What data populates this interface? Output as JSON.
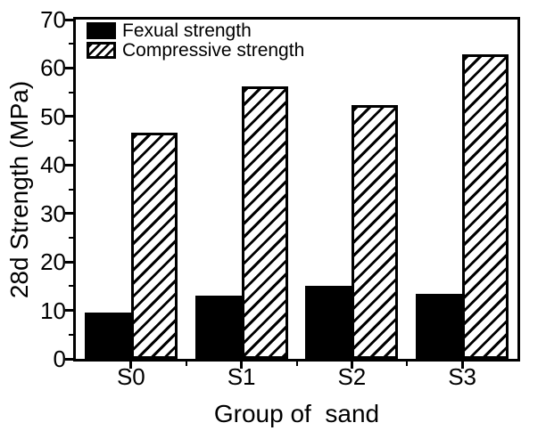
{
  "chart_data": {
    "type": "bar",
    "title": "",
    "categories": [
      "S0",
      "S1",
      "S2",
      "S3"
    ],
    "series": [
      {
        "name": "Fexual strength",
        "style": "solid",
        "values": [
          9.5,
          13.0,
          15.0,
          13.4
        ]
      },
      {
        "name": "Compressive strength",
        "style": "hatched",
        "values": [
          46.7,
          56.3,
          52.4,
          62.8
        ]
      }
    ],
    "xlabel": "Group of  sand",
    "ylabel": "28d Strength (MPa)",
    "ylim": [
      0,
      70
    ],
    "y_major_step": 10,
    "y_minor_step": 5,
    "y_tick_labels": [
      "0",
      "10",
      "20",
      "30",
      "40",
      "50",
      "60",
      "70"
    ],
    "legend_position": "top-left",
    "grid": false,
    "colors": {
      "bar_fill": "#000000",
      "hatch_color": "#000000",
      "axis": "#000000",
      "background": "#ffffff"
    }
  }
}
